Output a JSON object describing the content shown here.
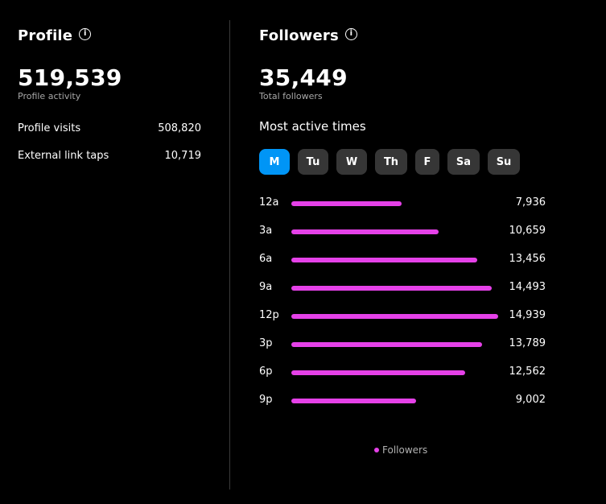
{
  "profile": {
    "title": "Profile",
    "total": "519,539",
    "total_label": "Profile activity",
    "stats": [
      {
        "label": "Profile visits",
        "value": "508,820"
      },
      {
        "label": "External link taps",
        "value": "10,719"
      }
    ]
  },
  "followers": {
    "title": "Followers",
    "total": "35,449",
    "total_label": "Total followers",
    "most_active_title": "Most active times",
    "days": [
      {
        "label": "M",
        "active": true
      },
      {
        "label": "Tu",
        "active": false
      },
      {
        "label": "W",
        "active": false
      },
      {
        "label": "Th",
        "active": false
      },
      {
        "label": "F",
        "active": false
      },
      {
        "label": "Sa",
        "active": false
      },
      {
        "label": "Su",
        "active": false
      }
    ]
  },
  "chart_data": {
    "type": "bar",
    "orientation": "horizontal",
    "categories": [
      "12a",
      "3a",
      "6a",
      "9a",
      "12p",
      "3p",
      "6p",
      "9p"
    ],
    "values": [
      7936,
      10659,
      13456,
      14493,
      14939,
      13789,
      12562,
      9002
    ],
    "value_labels": [
      "7,936",
      "10,659",
      "13,456",
      "14,493",
      "14,939",
      "13,789",
      "12,562",
      "9,002"
    ],
    "series_name": "Followers",
    "legend": "bottom",
    "color": "#e541e8"
  },
  "colors": {
    "accent": "#0095f6",
    "bar": "#e541e8",
    "chip": "#363636"
  }
}
